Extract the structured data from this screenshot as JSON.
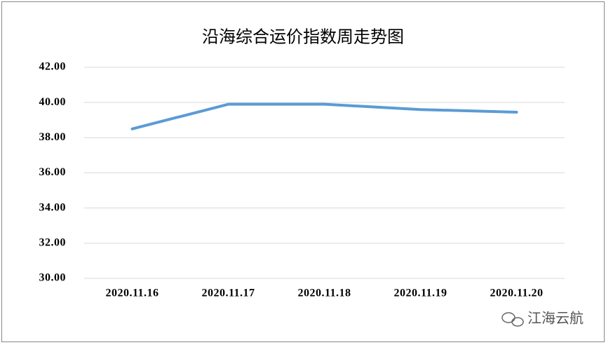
{
  "chart_data": {
    "type": "line",
    "title": "沿海综合运价指数周走势图",
    "categories": [
      "2020.11.16",
      "2020.11.17",
      "2020.11.18",
      "2020.11.19",
      "2020.11.20"
    ],
    "values": [
      38.5,
      39.9,
      39.9,
      39.6,
      39.45
    ],
    "color": "#5b9bd5",
    "ylim": [
      30,
      42
    ],
    "yticks": [
      {
        "value": 30,
        "label": "30.00"
      },
      {
        "value": 32,
        "label": "32.00"
      },
      {
        "value": 34,
        "label": "34.00"
      },
      {
        "value": 36,
        "label": "36.00"
      },
      {
        "value": 38,
        "label": "38.00"
      },
      {
        "value": 40,
        "label": "40.00"
      },
      {
        "value": 42,
        "label": "42.00"
      }
    ],
    "grid": true
  },
  "watermark": "江海云航"
}
